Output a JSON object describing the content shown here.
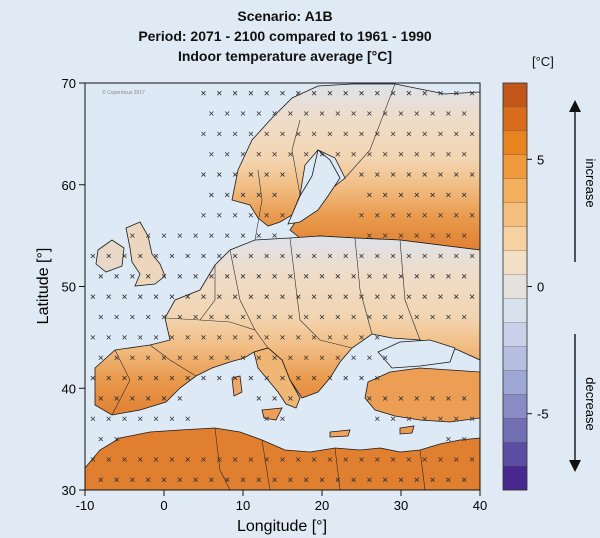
{
  "title": {
    "line1": "Scenario: A1B",
    "line2": "Period: 2071 - 2100 compared to 1961 - 1990",
    "line3": "Indoor temperature average [°C]"
  },
  "watermark": "© Copernicus 2017",
  "axes": {
    "xlabel": "Longitude [°]",
    "ylabel": "Latitude [°]",
    "x_ticks": [
      -10,
      0,
      10,
      20,
      30,
      40
    ],
    "y_ticks": [
      30,
      40,
      50,
      60,
      70
    ],
    "x_range": [
      -10,
      40
    ],
    "y_range": [
      30,
      70
    ]
  },
  "colorbar": {
    "unit": "[°C]",
    "range": [
      -8,
      8
    ],
    "tick_values": [
      -5,
      0,
      5
    ],
    "tick_labels": [
      "-5",
      "0",
      "5"
    ],
    "colors_top_to_bottom": [
      "#c2561a",
      "#d96c1c",
      "#e8841f",
      "#ef9a3c",
      "#f3ae5e",
      "#f5c07f",
      "#f6d1a2",
      "#f3dfc5",
      "#e5e2de",
      "#d8e2ee",
      "#c9d2ea",
      "#b6bfe0",
      "#9fa8d4",
      "#8a8cc5",
      "#7270b5",
      "#5b4ea2",
      "#48288e"
    ],
    "increase_label": "increase",
    "decrease_label": "decrease"
  },
  "colors": {
    "background": "#dfeaf4",
    "sea": "#dde9f5",
    "coast": "#1a1a1a"
  }
}
